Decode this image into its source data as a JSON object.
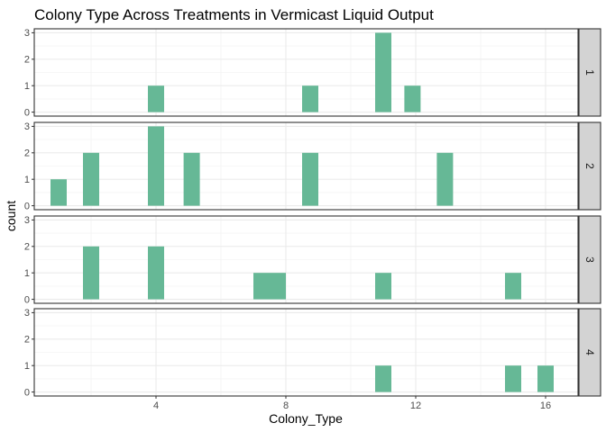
{
  "chart_data": {
    "type": "bar",
    "title": "Colony Type Across Treatments in Vermicast Liquid Output",
    "xlabel": "Colony_Type",
    "ylabel": "count",
    "xlim": [
      0.25,
      17.0
    ],
    "ylim": [
      -0.15,
      3.15
    ],
    "x_ticks": [
      4,
      8,
      12,
      16
    ],
    "y_ticks": [
      0,
      1,
      2,
      3
    ],
    "bin_width": 0.5,
    "bar_color": "#66b896",
    "strip_fill": "#d3d3d3",
    "panel_border": "#333333",
    "grid": true,
    "facet_by": "treatment",
    "panels": [
      {
        "label": "1",
        "bins": [
          {
            "x": 4,
            "count": 1
          },
          {
            "x": 8.75,
            "count": 1
          },
          {
            "x": 11,
            "count": 3
          },
          {
            "x": 11.9,
            "count": 1
          }
        ]
      },
      {
        "label": "2",
        "bins": [
          {
            "x": 1,
            "count": 1
          },
          {
            "x": 2,
            "count": 2
          },
          {
            "x": 4,
            "count": 3
          },
          {
            "x": 5.1,
            "count": 2
          },
          {
            "x": 8.75,
            "count": 2
          },
          {
            "x": 12.9,
            "count": 2
          }
        ]
      },
      {
        "label": "3",
        "bins": [
          {
            "x": 2,
            "count": 2
          },
          {
            "x": 4,
            "count": 2
          },
          {
            "x": 7.25,
            "count": 1
          },
          {
            "x": 7.75,
            "count": 1
          },
          {
            "x": 11,
            "count": 1
          },
          {
            "x": 15,
            "count": 1
          }
        ]
      },
      {
        "label": "4",
        "bins": [
          {
            "x": 11,
            "count": 1
          },
          {
            "x": 15,
            "count": 1
          },
          {
            "x": 16,
            "count": 1
          }
        ]
      }
    ]
  }
}
